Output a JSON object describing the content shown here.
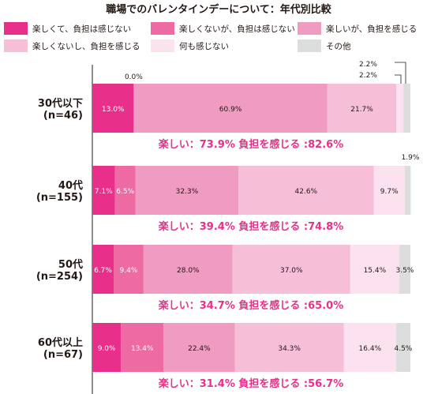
{
  "chart_data": {
    "type": "bar",
    "orientation": "horizontal",
    "stacked": true,
    "title": "職場でのバレンタインデーについて：年代別比較",
    "xlim": [
      0,
      100
    ],
    "grid": false,
    "legend_position": "top",
    "categories": [
      "30代以下\n(n=46)",
      "40代\n(n=155)",
      "50代\n(n=254)",
      "60代以上\n(n=67)"
    ],
    "series": [
      {
        "name": "楽しくて、負担は感じない",
        "color": "#e8308a",
        "values": [
          13.0,
          7.1,
          6.7,
          9.0
        ],
        "labels": [
          "13.0%",
          "7.1%",
          "6.7%",
          "9.0%"
        ]
      },
      {
        "name": "楽しくないが、負担は感じない",
        "color": "#ed6aa3",
        "values": [
          0.0,
          6.5,
          9.4,
          13.4
        ],
        "labels": [
          "0.0%",
          "6.5%",
          "9.4%",
          "13.4%"
        ]
      },
      {
        "name": "楽しいが、負担を感じる",
        "color": "#f09bc1",
        "values": [
          60.9,
          32.3,
          28.0,
          22.4
        ],
        "labels": [
          "60.9%",
          "32.3%",
          "28.0%",
          "22.4%"
        ]
      },
      {
        "name": "楽しくないし、負担を感じる",
        "color": "#f6bfd7",
        "values": [
          21.7,
          42.6,
          37.0,
          34.3
        ],
        "labels": [
          "21.7%",
          "42.6%",
          "37.0%",
          "34.3%"
        ]
      },
      {
        "name": "何も感じない",
        "color": "#fbe2ee",
        "values": [
          2.2,
          9.7,
          15.4,
          16.4
        ],
        "labels": [
          "2.2%",
          "9.7%",
          "15.4%",
          "16.4%"
        ]
      },
      {
        "name": "その他",
        "color": "#dcdddd",
        "values": [
          2.2,
          1.9,
          3.5,
          4.5
        ],
        "labels": [
          "2.2%",
          "1.9%",
          "3.5%",
          "4.5%"
        ]
      }
    ],
    "summaries": [
      "楽しい：73.9% 負担を感じる :82.6%",
      "楽しい：39.4% 負担を感じる :74.8%",
      "楽しい：34.7% 負担を感じる :65.0%",
      "楽しい：31.4% 負担を感じる :56.7%"
    ],
    "text_color": "#231815",
    "summary_color": "#e8308a"
  }
}
